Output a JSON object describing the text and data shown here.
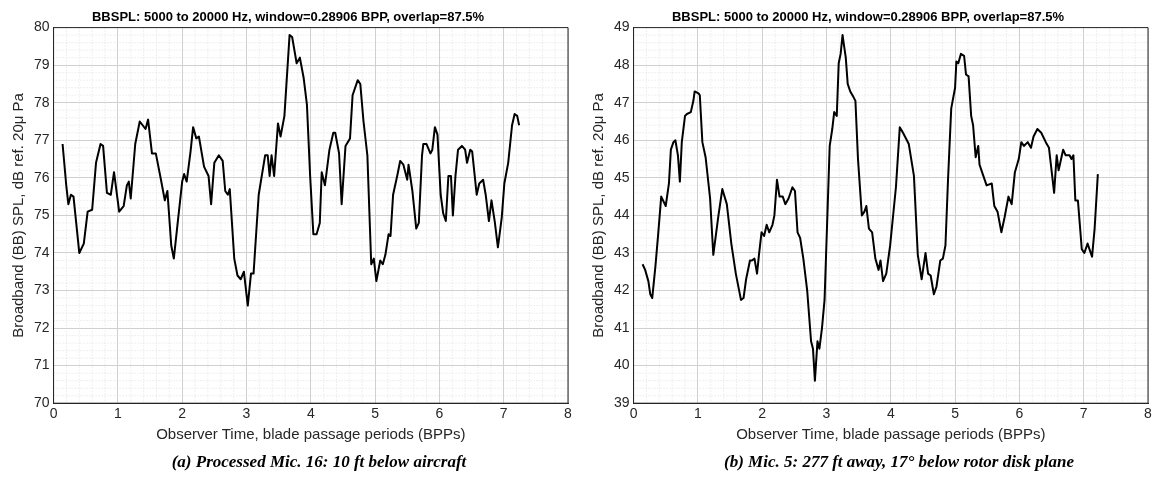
{
  "chart_data": [
    {
      "type": "line",
      "title": "BBSPL: 5000 to 20000 Hz, window=0.28906 BPP, overlap=87.5%",
      "xlabel": "Observer Time, blade passage periods (BPPs)",
      "ylabel": "Broadband (BB) SPL, dB ref. 20μ Pa",
      "annotations": [
        "(a) Processed Mic. 16: 10 ft below aircraft"
      ],
      "xlim": [
        0,
        8
      ],
      "xticks": [
        0,
        1,
        2,
        3,
        4,
        5,
        6,
        7,
        8
      ],
      "ylim": [
        70,
        80
      ],
      "yticks": [
        70,
        71,
        72,
        73,
        74,
        75,
        76,
        77,
        78,
        79,
        80
      ],
      "grid": true,
      "legend": false,
      "series": [
        {
          "color": "#000000",
          "x": [
            0.14,
            0.2,
            0.23,
            0.27,
            0.31,
            0.4,
            0.47,
            0.53,
            0.6,
            0.66,
            0.73,
            0.77,
            0.83,
            0.89,
            0.94,
            1.02,
            1.09,
            1.14,
            1.17,
            1.2,
            1.27,
            1.34,
            1.43,
            1.47,
            1.53,
            1.59,
            1.67,
            1.73,
            1.77,
            1.83,
            1.87,
            1.93,
            2.0,
            2.03,
            2.07,
            2.13,
            2.17,
            2.22,
            2.26,
            2.34,
            2.41,
            2.45,
            2.5,
            2.57,
            2.63,
            2.67,
            2.71,
            2.74,
            2.81,
            2.86,
            2.91,
            2.96,
            3.02,
            3.07,
            3.11,
            3.19,
            3.29,
            3.33,
            3.36,
            3.39,
            3.43,
            3.49,
            3.53,
            3.59,
            3.67,
            3.71,
            3.78,
            3.83,
            3.89,
            3.94,
            3.99,
            4.04,
            4.09,
            4.14,
            4.17,
            4.22,
            4.29,
            4.35,
            4.38,
            4.44,
            4.48,
            4.54,
            4.61,
            4.65,
            4.73,
            4.77,
            4.82,
            4.88,
            4.94,
            4.98,
            5.02,
            5.08,
            5.12,
            5.16,
            5.21,
            5.24,
            5.28,
            5.35,
            5.39,
            5.44,
            5.5,
            5.52,
            5.58,
            5.64,
            5.68,
            5.73,
            5.75,
            5.8,
            5.86,
            5.89,
            5.93,
            5.97,
            6.02,
            6.06,
            6.1,
            6.14,
            6.18,
            6.21,
            6.25,
            6.29,
            6.35,
            6.4,
            6.43,
            6.48,
            6.51,
            6.58,
            6.62,
            6.68,
            6.72,
            6.77,
            6.81,
            6.86,
            6.91,
            6.97,
            7.01,
            7.07,
            7.13,
            7.17,
            7.21,
            7.24
          ],
          "values": [
            76.9,
            75.75,
            75.3,
            75.55,
            75.5,
            74.0,
            74.25,
            75.1,
            75.15,
            76.4,
            76.9,
            76.85,
            75.6,
            75.55,
            76.15,
            75.1,
            75.25,
            75.8,
            75.9,
            75.45,
            76.9,
            77.5,
            77.3,
            77.55,
            76.65,
            76.65,
            75.95,
            75.4,
            75.65,
            74.2,
            73.85,
            74.8,
            75.9,
            76.1,
            75.9,
            76.7,
            77.35,
            77.05,
            77.1,
            76.3,
            76.05,
            75.3,
            76.4,
            76.6,
            76.45,
            75.65,
            75.55,
            75.7,
            73.85,
            73.4,
            73.3,
            73.5,
            72.6,
            73.45,
            73.45,
            75.55,
            76.6,
            76.6,
            76.05,
            76.6,
            76.05,
            77.45,
            77.1,
            77.65,
            79.8,
            79.75,
            79.05,
            79.2,
            78.65,
            77.95,
            76.05,
            74.5,
            74.5,
            74.8,
            76.15,
            75.8,
            76.75,
            77.2,
            77.2,
            76.65,
            75.3,
            76.85,
            77.05,
            78.2,
            78.6,
            78.5,
            77.5,
            76.6,
            73.7,
            73.85,
            73.25,
            73.8,
            73.7,
            73.95,
            74.5,
            74.45,
            75.55,
            76.1,
            76.45,
            76.35,
            75.95,
            76.35,
            75.65,
            74.65,
            74.8,
            76.6,
            76.9,
            76.9,
            76.65,
            76.75,
            77.35,
            77.15,
            75.55,
            75.05,
            74.85,
            76.05,
            76.05,
            75.0,
            76.05,
            76.75,
            76.85,
            76.75,
            76.4,
            76.75,
            76.7,
            75.55,
            75.85,
            75.95,
            75.55,
            74.85,
            75.4,
            74.85,
            74.15,
            74.95,
            75.85,
            76.4,
            77.4,
            77.7,
            77.65,
            77.4
          ]
        }
      ]
    },
    {
      "type": "line",
      "title": "BBSPL: 5000 to 20000 Hz, window=0.28906 BPP, overlap=87.5%",
      "xlabel": "Observer Time, blade passage periods (BPPs)",
      "ylabel": "Broadband (BB) SPL, dB ref. 20μ Pa",
      "annotations": [
        "(b) Mic. 5: 277 ft away, 17° below rotor disk plane"
      ],
      "xlim": [
        0,
        8
      ],
      "xticks": [
        0,
        1,
        2,
        3,
        4,
        5,
        6,
        7,
        8
      ],
      "ylim": [
        39,
        49
      ],
      "yticks": [
        39,
        40,
        41,
        42,
        43,
        44,
        45,
        46,
        47,
        48,
        49
      ],
      "grid": true,
      "legend": false,
      "series": [
        {
          "color": "#000000",
          "x": [
            0.14,
            0.18,
            0.23,
            0.26,
            0.29,
            0.34,
            0.38,
            0.43,
            0.5,
            0.55,
            0.58,
            0.62,
            0.65,
            0.69,
            0.72,
            0.75,
            0.8,
            0.83,
            0.89,
            0.93,
            0.95,
            1.01,
            1.03,
            1.07,
            1.12,
            1.19,
            1.24,
            1.32,
            1.38,
            1.45,
            1.52,
            1.59,
            1.67,
            1.71,
            1.75,
            1.81,
            1.84,
            1.88,
            1.92,
            1.95,
            1.99,
            2.03,
            2.07,
            2.11,
            2.16,
            2.19,
            2.23,
            2.27,
            2.32,
            2.36,
            2.41,
            2.47,
            2.51,
            2.55,
            2.59,
            2.64,
            2.7,
            2.76,
            2.79,
            2.82,
            2.86,
            2.89,
            2.93,
            2.97,
            3.02,
            3.05,
            3.09,
            3.12,
            3.16,
            3.19,
            3.22,
            3.25,
            3.3,
            3.33,
            3.37,
            3.42,
            3.45,
            3.49,
            3.55,
            3.59,
            3.62,
            3.66,
            3.71,
            3.76,
            3.81,
            3.84,
            3.88,
            3.93,
            3.99,
            4.08,
            4.14,
            4.19,
            4.28,
            4.36,
            4.42,
            4.48,
            4.54,
            4.58,
            4.62,
            4.67,
            4.71,
            4.77,
            4.81,
            4.85,
            4.89,
            4.94,
            5.0,
            5.02,
            5.05,
            5.09,
            5.14,
            5.17,
            5.21,
            5.25,
            5.28,
            5.32,
            5.36,
            5.38,
            5.43,
            5.49,
            5.57,
            5.61,
            5.66,
            5.72,
            5.77,
            5.83,
            5.88,
            5.93,
            5.99,
            6.03,
            6.07,
            6.13,
            6.18,
            6.22,
            6.28,
            6.34,
            6.41,
            6.46,
            6.51,
            6.54,
            6.58,
            6.61,
            6.68,
            6.72,
            6.78,
            6.81,
            6.84,
            6.87,
            6.91,
            6.97,
            7.01,
            7.06,
            7.13,
            7.17,
            7.22
          ],
          "values": [
            42.7,
            42.55,
            42.25,
            41.9,
            41.8,
            42.65,
            43.45,
            44.5,
            44.25,
            44.85,
            45.75,
            45.95,
            46.0,
            45.6,
            44.9,
            45.95,
            46.65,
            46.7,
            46.75,
            47.05,
            47.3,
            47.25,
            47.2,
            45.95,
            45.55,
            44.45,
            42.95,
            44.0,
            44.7,
            44.3,
            43.25,
            42.45,
            41.75,
            41.8,
            42.3,
            42.8,
            42.8,
            42.85,
            42.45,
            42.95,
            43.55,
            43.45,
            43.75,
            43.55,
            43.75,
            44.0,
            44.95,
            44.5,
            44.5,
            44.3,
            44.45,
            44.75,
            44.65,
            43.55,
            43.4,
            42.85,
            42.0,
            40.65,
            40.45,
            39.6,
            40.65,
            40.45,
            41.0,
            41.75,
            44.3,
            45.85,
            46.3,
            46.75,
            46.65,
            48.05,
            48.3,
            48.8,
            48.2,
            47.5,
            47.3,
            47.15,
            47.05,
            45.5,
            44.0,
            44.1,
            44.25,
            43.65,
            43.55,
            42.85,
            42.55,
            42.8,
            42.25,
            42.45,
            43.2,
            44.75,
            46.35,
            46.2,
            45.9,
            45.05,
            42.95,
            42.3,
            43.0,
            42.45,
            42.4,
            41.9,
            42.1,
            42.8,
            42.85,
            43.2,
            44.95,
            46.85,
            47.4,
            48.1,
            48.05,
            48.3,
            48.25,
            47.75,
            47.7,
            46.65,
            46.4,
            45.55,
            45.85,
            45.35,
            45.1,
            44.8,
            44.85,
            44.25,
            44.1,
            43.55,
            43.95,
            44.5,
            44.3,
            45.15,
            45.5,
            45.95,
            45.85,
            45.95,
            45.8,
            46.1,
            46.3,
            46.2,
            45.95,
            45.8,
            45.05,
            44.6,
            45.6,
            45.2,
            45.75,
            45.6,
            45.6,
            45.5,
            45.6,
            44.4,
            44.4,
            43.1,
            43.0,
            43.25,
            42.9,
            43.65,
            45.1
          ]
        }
      ]
    }
  ]
}
